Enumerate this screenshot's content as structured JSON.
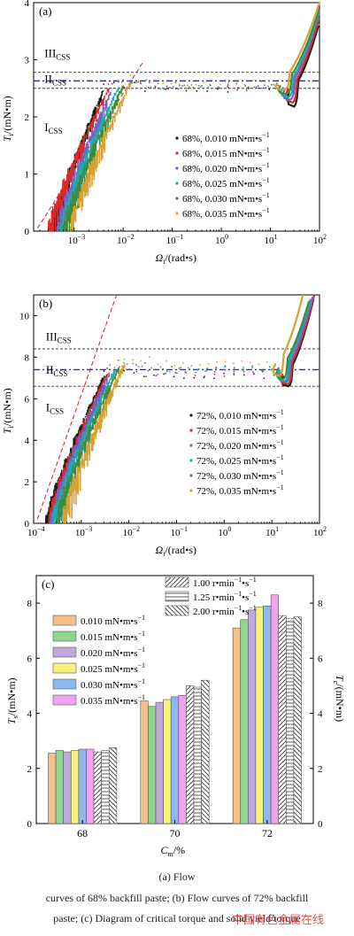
{
  "chart_data": [
    {
      "type": "scatter",
      "panel_label": "(a)",
      "ylabel_main": "T",
      "ylabel_sub": "i",
      "ylabel_unit": "/(mN•m)",
      "xlabel_main": "Ω",
      "xlabel_sub": "i",
      "xlabel_unit": "/(rad•s)",
      "x_scale": "log",
      "xlim": [
        0.00015,
        100
      ],
      "ylim": [
        0,
        4
      ],
      "x_ticks": [
        {
          "value": 0.001,
          "base": "10",
          "exp": "−3"
        },
        {
          "value": 0.01,
          "base": "10",
          "exp": "−2"
        },
        {
          "value": 0.1,
          "base": "10",
          "exp": "−1"
        },
        {
          "value": 1,
          "base": "10",
          "exp": "0"
        },
        {
          "value": 10,
          "base": "10",
          "exp": "1"
        },
        {
          "value": 100,
          "base": "10",
          "exp": "2"
        }
      ],
      "y_ticks": [
        0,
        1,
        2,
        3,
        4
      ],
      "regions": [
        {
          "main": "III",
          "sub": "CSS",
          "x": 0.00025,
          "y": 3.05
        },
        {
          "main": "II",
          "sub": "CSS",
          "x": 0.00025,
          "y": 2.6
        },
        {
          "main": "I",
          "sub": "CSS",
          "x": 0.00025,
          "y": 1.75
        }
      ],
      "ref_lines": [
        {
          "style": "dotted-black",
          "y": 2.78
        },
        {
          "style": "dotted-black",
          "y": 2.5
        },
        {
          "style": "dashdot-blue",
          "y": 2.63
        }
      ],
      "trend_line": {
        "x": [
          0.00018,
          0.025
        ],
        "y": [
          0.05,
          2.95
        ]
      },
      "series": [
        {
          "name": "68%, 0.010 mN•m•s",
          "sup": "−1",
          "color": "#1a1a1a",
          "x0": 0.00035,
          "xend": 0.004,
          "top": 2.48,
          "tail_start": 25,
          "tail_end": 95,
          "tail_top": 3.6,
          "curl": 0.6
        },
        {
          "name": "68%, 0.015 mN•m•s",
          "sup": "−1",
          "color": "#d82b2b",
          "x0": 0.0003,
          "xend": 0.005,
          "top": 2.5,
          "tail_start": 23,
          "tail_end": 97,
          "tail_top": 3.7,
          "curl": 0.5
        },
        {
          "name": "68%, 0.020 mN•m•s",
          "sup": "−1",
          "color": "#7b5fc5",
          "x0": 0.00045,
          "xend": 0.006,
          "top": 2.5,
          "tail_start": 20,
          "tail_end": 98,
          "tail_top": 3.8,
          "curl": 0.4
        },
        {
          "name": "68%, 0.025 mN•m•s",
          "sup": "−1",
          "color": "#21a8b4",
          "x0": 0.0005,
          "xend": 0.008,
          "top": 2.52,
          "tail_start": 18,
          "tail_end": 99,
          "tail_top": 3.85,
          "curl": 0.35
        },
        {
          "name": "68%, 0.030 mN•m•s",
          "sup": "−1",
          "color": "#3f8c3a",
          "x0": 0.0006,
          "xend": 0.01,
          "top": 2.55,
          "tail_start": 16,
          "tail_end": 100,
          "tail_top": 3.9,
          "curl": 0.3
        },
        {
          "name": "68%, 0.035 mN•m•s",
          "sup": "−1",
          "color": "#d9a032",
          "x0": 0.0008,
          "xend": 0.014,
          "top": 2.6,
          "tail_start": 14,
          "tail_end": 100,
          "tail_top": 4.0,
          "curl": 0.25
        }
      ]
    },
    {
      "type": "scatter",
      "panel_label": "(b)",
      "ylabel_main": "T",
      "ylabel_sub": "i",
      "ylabel_unit": "/(mN•m)",
      "xlabel_main": "Ω",
      "xlabel_sub": "i",
      "xlabel_unit": "/(rad•s)",
      "x_scale": "log",
      "xlim": [
        0.0001,
        100
      ],
      "ylim": [
        0,
        11
      ],
      "x_ticks": [
        {
          "value": 0.0001,
          "base": "10",
          "exp": "−4"
        },
        {
          "value": 0.001,
          "base": "10",
          "exp": "−3"
        },
        {
          "value": 0.01,
          "base": "10",
          "exp": "−2"
        },
        {
          "value": 0.1,
          "base": "10",
          "exp": "−1"
        },
        {
          "value": 1,
          "base": "10",
          "exp": "0"
        },
        {
          "value": 10,
          "base": "10",
          "exp": "1"
        },
        {
          "value": 100,
          "base": "10",
          "exp": "2"
        }
      ],
      "y_ticks": [
        0,
        2,
        4,
        6,
        8,
        10
      ],
      "regions": [
        {
          "main": "III",
          "sub": "CSS",
          "x": 0.00018,
          "y": 8.8
        },
        {
          "main": "II",
          "sub": "CSS",
          "x": 0.00018,
          "y": 7.2
        },
        {
          "main": "I",
          "sub": "CSS",
          "x": 0.00018,
          "y": 5.4
        }
      ],
      "ref_lines": [
        {
          "style": "dotted-black",
          "y": 8.4
        },
        {
          "style": "dotted-black",
          "y": 6.6
        },
        {
          "style": "dashdot-blue",
          "y": 7.4
        }
      ],
      "trend_line": {
        "x": [
          0.00012,
          0.0055
        ],
        "y": [
          0.2,
          11
        ]
      },
      "series": [
        {
          "name": "72%, 0.010 mN•m•s",
          "sup": "−1",
          "color": "#1a1a1a",
          "x0": 0.00018,
          "xend": 0.003,
          "top": 7.1,
          "tail_start": 18,
          "tail_end": 75,
          "tail_top": 10.8,
          "curl": 1.0
        },
        {
          "name": "72%, 0.015 mN•m•s",
          "sup": "−1",
          "color": "#d82b2b",
          "x0": 0.0002,
          "xend": 0.0035,
          "top": 7.2,
          "tail_start": 17,
          "tail_end": 78,
          "tail_top": 11.0,
          "curl": 1.0
        },
        {
          "name": "72%, 0.020 mN•m•s",
          "sup": "−1",
          "color": "#7b5fc5",
          "x0": 0.00022,
          "xend": 0.004,
          "top": 7.3,
          "tail_start": 16,
          "tail_end": 72,
          "tail_top": 10.9,
          "curl": 1.0
        },
        {
          "name": "72%, 0.025 mN•m•s",
          "sup": "−1",
          "color": "#21a8b4",
          "x0": 0.00025,
          "xend": 0.005,
          "top": 7.4,
          "tail_start": 15,
          "tail_end": 65,
          "tail_top": 10.8,
          "curl": 1.1
        },
        {
          "name": "72%, 0.030 mN•m•s",
          "sup": "−1",
          "color": "#3f8c3a",
          "x0": 0.0003,
          "xend": 0.006,
          "top": 7.5,
          "tail_start": 14,
          "tail_end": 60,
          "tail_top": 10.7,
          "curl": 1.1
        },
        {
          "name": "72%, 0.035 mN•m•s",
          "sup": "−1",
          "color": "#d9a032",
          "x0": 0.0004,
          "xend": 0.008,
          "top": 7.7,
          "tail_start": 12,
          "tail_end": 45,
          "tail_top": 11.0,
          "curl": 1.2
        }
      ]
    },
    {
      "type": "bar",
      "panel_label": "(c)",
      "ylabel_left_main": "T",
      "ylabel_left_sub": "s",
      "ylabel_left_unit": "/(mN•m)",
      "ylabel_right_main": "T",
      "ylabel_right_sub": "c",
      "ylabel_right_unit": "/(mN•m)",
      "xlabel_main": "C",
      "xlabel_sub": "m",
      "xlabel_unit": "/%",
      "ylim": [
        0,
        9
      ],
      "y_ticks": [
        0,
        2,
        4,
        6,
        8
      ],
      "categories": [
        "68",
        "70",
        "72"
      ],
      "series": [
        {
          "name": "0.010 mN•m•s",
          "sup": "−1",
          "axis": "left",
          "fill": "#f4c08a",
          "values": [
            2.55,
            4.45,
            7.1
          ]
        },
        {
          "name": "0.015 mN•m•s",
          "sup": "−1",
          "axis": "left",
          "fill": "#8fd68f",
          "values": [
            2.65,
            4.25,
            7.4
          ]
        },
        {
          "name": "0.020 mN•m•s",
          "sup": "−1",
          "axis": "left",
          "fill": "#c0a8dc",
          "values": [
            2.6,
            4.4,
            7.75
          ]
        },
        {
          "name": "0.025 mN•m•s",
          "sup": "−1",
          "axis": "left",
          "fill": "#f6f27a",
          "values": [
            2.65,
            4.5,
            7.85
          ]
        },
        {
          "name": "0.030 mN•m•s",
          "sup": "−1",
          "axis": "left",
          "fill": "#8cb8f0",
          "values": [
            2.7,
            4.6,
            7.9
          ]
        },
        {
          "name": "0.035 mN•m•s",
          "sup": "−1",
          "axis": "left",
          "fill": "#f2a3f0",
          "values": [
            2.7,
            4.65,
            8.3
          ]
        },
        {
          "name": "1.00 r•min",
          "sup1": "−1",
          "mid": "•s",
          "sup2": "−1",
          "axis": "right",
          "pattern": "diag-right",
          "values": [
            2.6,
            5.0,
            7.55
          ]
        },
        {
          "name": "1.25 r•min",
          "sup1": "−1",
          "mid": "•s",
          "sup2": "−1",
          "axis": "right",
          "pattern": "horizontal",
          "values": [
            2.65,
            4.95,
            7.45
          ]
        },
        {
          "name": "2.00 r•min",
          "sup1": "−1",
          "mid": "•s",
          "sup2": "−1",
          "axis": "right",
          "pattern": "diag-left",
          "values": [
            2.75,
            5.2,
            7.5
          ]
        }
      ]
    }
  ],
  "caption": {
    "line1": "(a)  Flow",
    "line2": "curves of 68% backfill paste; (b) Flow curves of 72% backfill",
    "line3": "paste; (c) Diagram of critical torque and solid yield torque"
  },
  "watermark": "中国有色金属在线"
}
